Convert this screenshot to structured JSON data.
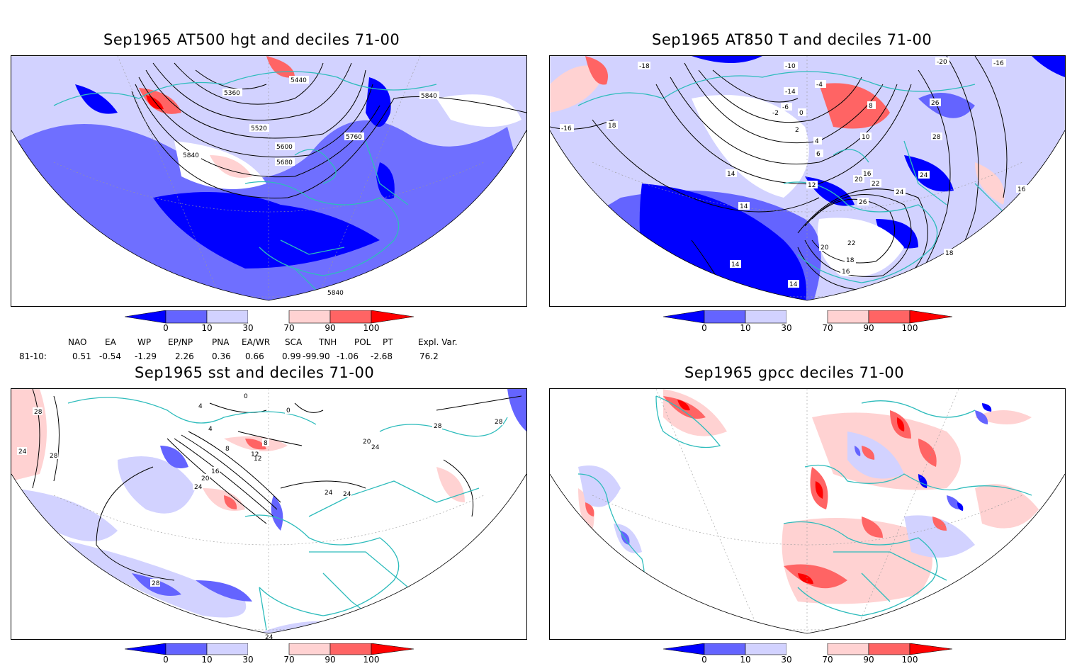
{
  "panels": [
    {
      "id": "at500",
      "title": "Sep1965 AT500 hgt and deciles 71-00",
      "contour_labels": [
        "5360",
        "5440",
        "5520",
        "5600",
        "5680",
        "5760",
        "5840",
        "5840",
        "5840"
      ]
    },
    {
      "id": "at850",
      "title": "Sep1965 AT850 T and deciles 71-00",
      "contour_labels": [
        "-18",
        "-10",
        "-14",
        "-4",
        "-6",
        "-2",
        "0",
        "2",
        "4",
        "6",
        "8",
        "10",
        "12",
        "14",
        "14",
        "14",
        "14",
        "16",
        "16",
        "16",
        "18",
        "18",
        "18",
        "20",
        "20",
        "22",
        "22",
        "24",
        "24",
        "26",
        "26",
        "28",
        "-16",
        "-16",
        "-20"
      ]
    },
    {
      "id": "sst",
      "title": "Sep1965 sst and deciles 71-00",
      "contour_labels": [
        "28",
        "24",
        "28",
        "4",
        "8",
        "12",
        "16",
        "20",
        "24",
        "8",
        "12",
        "0",
        "0",
        "4",
        "20",
        "24",
        "24",
        "24",
        "28",
        "28",
        "28",
        "24"
      ]
    },
    {
      "id": "gpcc",
      "title": "Sep1965 gpcc deciles 71-00",
      "contour_labels": []
    }
  ],
  "colorbar": {
    "ticks": [
      "0",
      "10",
      "30",
      "70",
      "90",
      "100"
    ],
    "colors": [
      "#0000ff",
      "#6464ff",
      "#d2d2ff",
      "#ffffff",
      "#ffd2d2",
      "#ff6464",
      "#ff0000"
    ]
  },
  "teleconnection": {
    "headers": [
      "NAO",
      "EA",
      "WP",
      "EP/NP",
      "PNA",
      "EA/WR",
      "SCA",
      "TNH",
      "POL",
      "PT",
      "Expl. Var."
    ],
    "row_label": "81-10:",
    "values": [
      "0.51",
      "-0.54",
      "-1.29",
      "2.26",
      "0.36",
      "0.66",
      "0.99",
      "-99.90",
      "-1.06",
      "-2.68",
      "76.2"
    ]
  }
}
